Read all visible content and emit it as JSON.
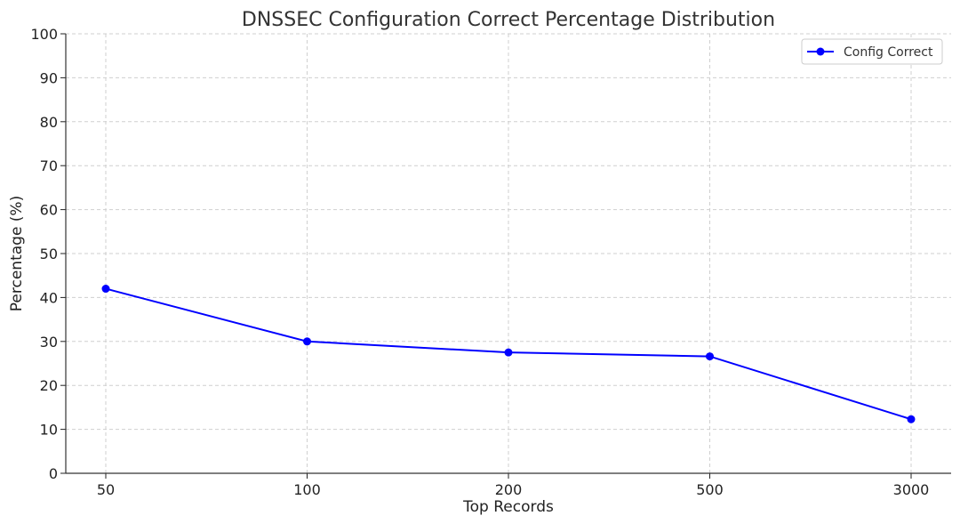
{
  "chart_data": {
    "type": "line",
    "title": "DNSSEC Configuration Correct Percentage Distribution",
    "xlabel": "Top Records",
    "ylabel": "Percentage (%)",
    "categories": [
      "50",
      "100",
      "200",
      "500",
      "3000"
    ],
    "series": [
      {
        "name": "Config Correct",
        "values": [
          42,
          30,
          27.5,
          26.6,
          12.3
        ],
        "color": "#0000ff"
      }
    ],
    "ylim": [
      0,
      100
    ],
    "yticks": [
      "0",
      "10",
      "20",
      "30",
      "40",
      "50",
      "60",
      "70",
      "80",
      "90",
      "100"
    ],
    "grid": true,
    "legend_position": "top-right"
  }
}
